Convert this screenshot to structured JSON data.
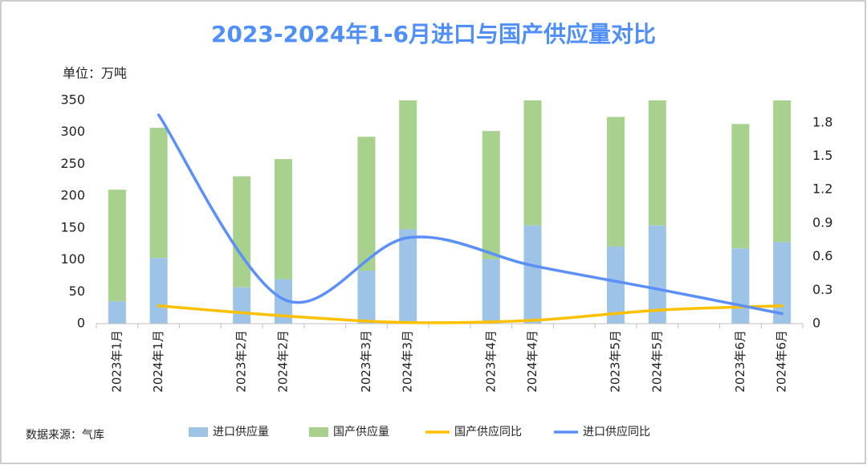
{
  "chart_data": {
    "type": "bar",
    "stacked": true,
    "title": "2023-2024年1-6月进口与国产供应量对比",
    "unit_label": "单位：万吨",
    "source": "数据来源：气库",
    "categories": [
      "2023年1月",
      "2024年1月",
      "2023年2月",
      "2024年2月",
      "2023年3月",
      "2024年3月",
      "2023年4月",
      "2024年4月",
      "2023年5月",
      "2024年5月",
      "2023年6月",
      "2024年6月"
    ],
    "series": [
      {
        "name": "进口供应量",
        "type": "bar",
        "color": "#9dc3e6",
        "values": [
          35,
          103,
          57,
          70,
          83,
          148,
          101,
          154,
          121,
          154,
          118,
          128
        ]
      },
      {
        "name": "国产供应量",
        "type": "bar",
        "color": "#a9d18e",
        "values": [
          175,
          204,
          174,
          188,
          210,
          210,
          201,
          210,
          203,
          205,
          195,
          230
        ]
      },
      {
        "name": "国产供应同比",
        "type": "line",
        "axis": "y2",
        "color": "#ffc000",
        "values": [
          null,
          0.16,
          null,
          0.07,
          null,
          0.01,
          null,
          0.03,
          null,
          0.12,
          null,
          0.16
        ]
      },
      {
        "name": "进口供应同比",
        "type": "line",
        "axis": "y2",
        "color": "#5b8ff9",
        "values": [
          null,
          1.87,
          null,
          0.22,
          null,
          0.77,
          null,
          0.52,
          null,
          0.31,
          null,
          0.09
        ]
      }
    ],
    "span_gaps": true,
    "smooth": true,
    "ylim": [
      0,
      350
    ],
    "yticks": [
      0,
      50,
      100,
      150,
      200,
      250,
      300,
      350
    ],
    "y2lim": [
      0,
      2.0
    ],
    "y2ticks": [
      0,
      0.3,
      0.6,
      0.9,
      1.2,
      1.5,
      1.8
    ],
    "title_color": "#4f8ff7",
    "legend": "bottom"
  }
}
